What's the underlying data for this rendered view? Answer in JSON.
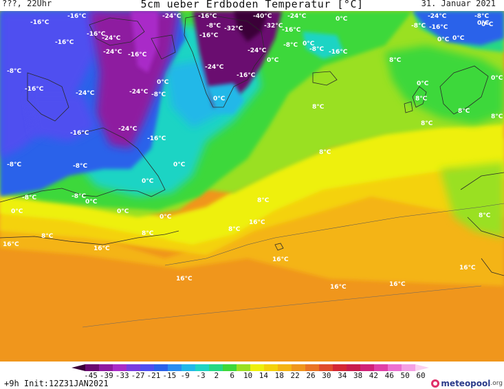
{
  "header": {
    "left": "???, 22Uhr",
    "title": "5cm ueber Erdboden Temperatur [°C]",
    "date": "31. Januar 2021"
  },
  "map": {
    "labels": [
      "-16°C",
      "-24°C",
      "-16°C",
      "-40°C",
      "-24°C",
      "0°C",
      "-24°C",
      "-8°C",
      "-16°C",
      "-8°C",
      "-32°C",
      "-32°C",
      "-16°C",
      "-8°C",
      "-16°C",
      "0°C",
      "-16°C",
      "-24°C",
      "-16°C",
      "-16°C",
      "-8°C",
      "0°C",
      "-16°C",
      "-8°C",
      "-8°C",
      "-24°C",
      "-16°C",
      "-24°C",
      "-24°C",
      "0°C",
      "-16°C",
      "-24°C",
      "8°C",
      "0°C",
      "0°C",
      "-16°C",
      "-24°C",
      "0°C",
      "0°C",
      "0°C",
      "-8°C",
      "8°C",
      "8°C",
      "-16°C",
      "-24°C",
      "8°C",
      "8°C",
      "-16°C",
      "8°C",
      "-8°C",
      "-8°C",
      "0°C",
      "0°C",
      "-8°C",
      "0°C",
      "8°C",
      "-8°C",
      "0°C",
      "0°C",
      "0°C",
      "0°C",
      "8°C",
      "16°C",
      "8°C",
      "8°C",
      "8°C",
      "16°C",
      "16°C",
      "16°C",
      "16°C",
      "16°C",
      "16°C",
      "16°C",
      "8°C",
      "0°C"
    ]
  },
  "legend": {
    "ticks": [
      "-45",
      "-39",
      "-33",
      "-27",
      "-21",
      "-15",
      "-9",
      "-3",
      "2",
      "6",
      "10",
      "14",
      "18",
      "22",
      "26",
      "30",
      "34",
      "38",
      "42",
      "46",
      "50",
      "60"
    ],
    "colors": [
      "#3b0038",
      "#6a0a70",
      "#8e1aa0",
      "#a92cc8",
      "#7a3ce0",
      "#4f4ff0",
      "#2b62ea",
      "#2a8ef0",
      "#22b8e8",
      "#1fd4c4",
      "#26d884",
      "#3ed83a",
      "#9ae022",
      "#eef00c",
      "#f4d20c",
      "#f4b414",
      "#f0961c",
      "#ea7424",
      "#e04c2c",
      "#d42834",
      "#c81c4c",
      "#d02278",
      "#e040a8",
      "#ec70d0",
      "#f4a0e4",
      "#fad0f0"
    ]
  },
  "footer": {
    "run": "+9h  Init:12Z31JAN2021",
    "brand_name": "meteopool",
    "brand_tld": ".org"
  }
}
